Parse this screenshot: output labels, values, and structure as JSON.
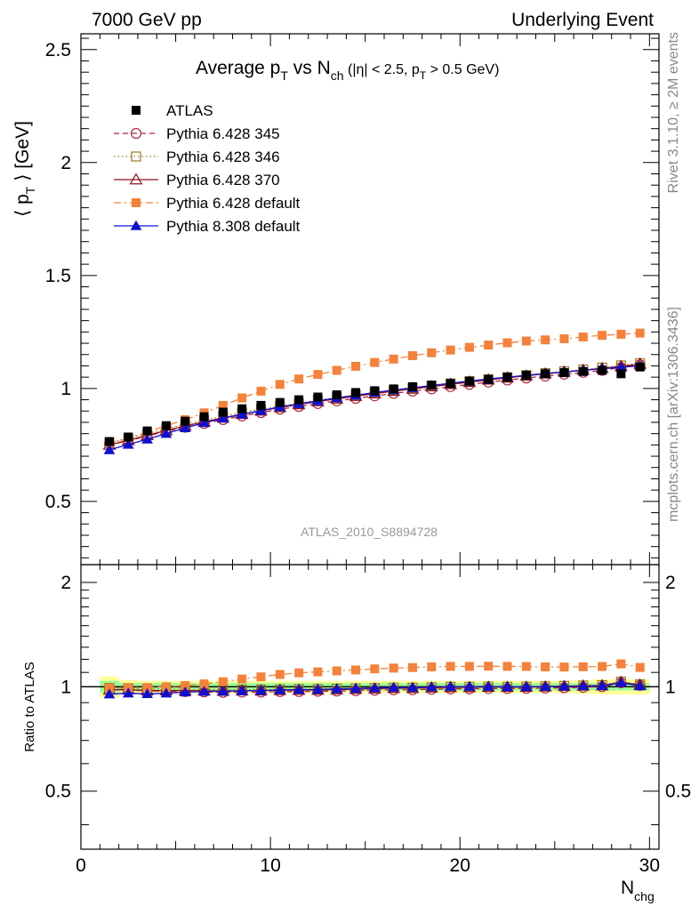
{
  "header": {
    "left": "7000 GeV pp",
    "right": "Underlying Event"
  },
  "side_labels": {
    "top": "Rivet 3.1.10, ≥ 2M events",
    "bottom": "mcplots.cern.ch [arXiv:1306.3436]"
  },
  "chart_data": {
    "type": "line",
    "title": {
      "main": "Average p",
      "main_sub": "T",
      "mid": " vs N",
      "mid_sub": "ch",
      "cut_open": " (|η| < 2.5, p",
      "cut_sub": "T",
      "cut_close": " > 0.5 GeV)"
    },
    "watermark": "ATLAS_2010_S8894728",
    "xlabel": {
      "base": "N",
      "sub": "chg"
    },
    "ylabel": {
      "open": "⟨ p",
      "sub": "T",
      "close": " ⟩ [GeV]"
    },
    "ratio_ylabel": "Ratio to ATLAS",
    "xlim": [
      0,
      30.5
    ],
    "ylim": [
      0.22,
      2.57
    ],
    "ratio_ylim": [
      0.34,
      2.25
    ],
    "x_ticks": [
      "0",
      "10",
      "20",
      "30"
    ],
    "y_ticks": [
      "0.5",
      "1",
      "1.5",
      "2",
      "2.5"
    ],
    "ratio_y_ticks": [
      "0.5",
      "1",
      "2"
    ],
    "x": [
      1.5,
      2.5,
      3.5,
      4.5,
      5.5,
      6.5,
      7.5,
      8.5,
      9.5,
      10.5,
      11.5,
      12.5,
      13.5,
      14.5,
      15.5,
      16.5,
      17.5,
      18.5,
      19.5,
      20.5,
      21.5,
      22.5,
      23.5,
      24.5,
      25.5,
      26.5,
      27.5,
      28.5,
      29.5
    ],
    "band_edges": [
      1,
      2,
      3,
      4,
      5,
      6,
      7,
      8,
      9,
      10,
      11,
      12,
      13,
      14,
      15,
      16,
      17,
      18,
      19,
      20,
      21,
      22,
      23,
      24,
      25,
      26,
      27,
      28,
      29,
      30
    ],
    "ratio_band": {
      "inner": [
        0.04,
        0.025,
        0.025,
        0.025,
        0.025,
        0.025,
        0.025,
        0.025,
        0.025,
        0.025,
        0.025,
        0.025,
        0.025,
        0.025,
        0.025,
        0.025,
        0.025,
        0.025,
        0.025,
        0.025,
        0.025,
        0.025,
        0.025,
        0.025,
        0.025,
        0.025,
        0.025,
        0.025,
        0.025
      ],
      "outer": [
        0.07,
        0.045,
        0.04,
        0.04,
        0.04,
        0.04,
        0.04,
        0.04,
        0.04,
        0.04,
        0.04,
        0.04,
        0.04,
        0.04,
        0.04,
        0.04,
        0.04,
        0.04,
        0.04,
        0.04,
        0.04,
        0.04,
        0.04,
        0.04,
        0.04,
        0.045,
        0.05,
        0.05,
        0.05
      ]
    },
    "legend_position": "top-left",
    "series": [
      {
        "name": "ATLAS",
        "role": "data",
        "color": "#000000",
        "marker": "square-filled",
        "line": "none",
        "values": [
          0.765,
          0.785,
          0.812,
          0.835,
          0.855,
          0.875,
          0.895,
          0.91,
          0.925,
          0.938,
          0.95,
          0.962,
          0.972,
          0.982,
          0.99,
          0.998,
          1.008,
          1.015,
          1.022,
          1.032,
          1.04,
          1.05,
          1.058,
          1.065,
          1.07,
          1.075,
          1.08,
          1.065,
          1.095
        ],
        "ratio": [
          1,
          1,
          1,
          1,
          1,
          1,
          1,
          1,
          1,
          1,
          1,
          1,
          1,
          1,
          1,
          1,
          1,
          1,
          1,
          1,
          1,
          1,
          1,
          1,
          1,
          1,
          1,
          1,
          1
        ]
      },
      {
        "name": "Pythia 6.428 345",
        "color": "#b2283c",
        "marker": "circle-open",
        "line": "dashed",
        "values": [
          0.755,
          0.768,
          0.79,
          0.81,
          0.828,
          0.845,
          0.862,
          0.878,
          0.893,
          0.908,
          0.92,
          0.933,
          0.945,
          0.956,
          0.967,
          0.978,
          0.988,
          0.998,
          1.008,
          1.018,
          1.028,
          1.037,
          1.046,
          1.055,
          1.063,
          1.071,
          1.08,
          1.093,
          1.105
        ],
        "ratio": [
          0.987,
          0.978,
          0.973,
          0.97,
          0.968,
          0.966,
          0.963,
          0.965,
          0.965,
          0.968,
          0.968,
          0.97,
          0.972,
          0.974,
          0.977,
          0.98,
          0.98,
          0.983,
          0.986,
          0.986,
          0.988,
          0.988,
          0.989,
          0.991,
          0.993,
          0.996,
          1.0,
          1.026,
          1.009
        ]
      },
      {
        "name": "Pythia 6.428 346",
        "color": "#9b7a20",
        "marker": "square-open",
        "line": "dotted",
        "values": [
          0.76,
          0.778,
          0.8,
          0.822,
          0.842,
          0.86,
          0.878,
          0.893,
          0.908,
          0.922,
          0.935,
          0.948,
          0.96,
          0.971,
          0.982,
          0.992,
          1.002,
          1.012,
          1.022,
          1.032,
          1.041,
          1.05,
          1.059,
          1.068,
          1.076,
          1.084,
          1.092,
          1.102,
          1.112
        ],
        "ratio": [
          0.993,
          0.991,
          0.985,
          0.984,
          0.985,
          0.983,
          0.981,
          0.981,
          0.982,
          0.983,
          0.984,
          0.985,
          0.988,
          0.989,
          0.992,
          0.994,
          0.994,
          0.997,
          1.0,
          1.0,
          1.001,
          1.0,
          1.001,
          1.003,
          1.006,
          1.008,
          1.011,
          1.035,
          1.016
        ]
      },
      {
        "name": "Pythia 6.428 370",
        "color": "#8b1020",
        "marker": "triangle-open",
        "line": "solid",
        "values": [
          0.75,
          0.77,
          0.792,
          0.814,
          0.834,
          0.852,
          0.87,
          0.886,
          0.901,
          0.916,
          0.929,
          0.942,
          0.954,
          0.966,
          0.977,
          0.988,
          0.998,
          1.008,
          1.018,
          1.028,
          1.038,
          1.047,
          1.056,
          1.065,
          1.073,
          1.081,
          1.089,
          1.098,
          1.108
        ],
        "ratio": [
          0.98,
          0.981,
          0.975,
          0.975,
          0.975,
          0.974,
          0.972,
          0.974,
          0.974,
          0.977,
          0.978,
          0.979,
          0.981,
          0.984,
          0.987,
          0.99,
          0.99,
          0.993,
          0.996,
          0.996,
          0.998,
          0.997,
          0.998,
          1.0,
          1.003,
          1.006,
          1.008,
          1.031,
          1.012
        ]
      },
      {
        "name": "Pythia 6.428 default",
        "color": "#f5813a",
        "marker": "square-filled",
        "line": "dashdot",
        "values": [
          0.76,
          0.78,
          0.808,
          0.835,
          0.862,
          0.892,
          0.925,
          0.958,
          0.988,
          1.018,
          1.042,
          1.062,
          1.08,
          1.098,
          1.115,
          1.13,
          1.145,
          1.158,
          1.17,
          1.182,
          1.192,
          1.202,
          1.21,
          1.215,
          1.22,
          1.228,
          1.235,
          1.24,
          1.245
        ],
        "ratio": [
          0.993,
          0.994,
          0.995,
          1.0,
          1.008,
          1.019,
          1.034,
          1.053,
          1.068,
          1.085,
          1.097,
          1.104,
          1.111,
          1.118,
          1.126,
          1.132,
          1.136,
          1.141,
          1.145,
          1.145,
          1.146,
          1.145,
          1.144,
          1.141,
          1.14,
          1.142,
          1.144,
          1.164,
          1.137
        ]
      },
      {
        "name": "Pythia 8.308 default",
        "color": "#1010d0",
        "marker": "triangle-filled",
        "line": "solid",
        "values": [
          0.728,
          0.752,
          0.775,
          0.8,
          0.825,
          0.848,
          0.868,
          0.885,
          0.902,
          0.918,
          0.932,
          0.945,
          0.958,
          0.97,
          0.982,
          0.993,
          1.003,
          1.013,
          1.023,
          1.033,
          1.042,
          1.05,
          1.058,
          1.066,
          1.073,
          1.08,
          1.087,
          1.094,
          1.1
        ],
        "ratio": [
          0.952,
          0.958,
          0.954,
          0.958,
          0.965,
          0.969,
          0.97,
          0.973,
          0.975,
          0.979,
          0.981,
          0.982,
          0.986,
          0.988,
          0.992,
          0.995,
          0.995,
          0.998,
          1.001,
          1.001,
          1.002,
          1.0,
          1.0,
          1.001,
          1.003,
          1.005,
          1.006,
          1.027,
          1.005
        ]
      }
    ]
  }
}
